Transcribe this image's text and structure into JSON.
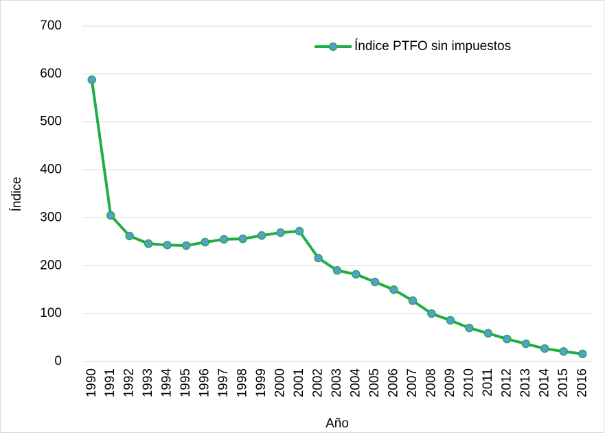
{
  "chart_data": {
    "type": "line",
    "x_label": "Año",
    "y_label": "Índice",
    "categories": [
      "1990",
      "1991",
      "1992",
      "1993",
      "1994",
      "1995",
      "1996",
      "1997",
      "1998",
      "1999",
      "2000",
      "2001",
      "2002",
      "2003",
      "2004",
      "2005",
      "2006",
      "2007",
      "2008",
      "2009",
      "2010",
      "2011",
      "2012",
      "2013",
      "2014",
      "2015",
      "2016"
    ],
    "series": [
      {
        "name": "Índice PTFO sin impuestos",
        "color": "#1fad45",
        "marker_color": "#5b9bd5",
        "values": [
          588,
          305,
          262,
          246,
          243,
          242,
          249,
          255,
          256,
          263,
          269,
          272,
          216,
          190,
          182,
          166,
          150,
          127,
          100,
          86,
          70,
          59,
          47,
          37,
          27,
          21,
          16
        ]
      }
    ],
    "ylim": [
      0,
      700
    ],
    "yticks": [
      0,
      100,
      200,
      300,
      400,
      500,
      600,
      700
    ],
    "grid": true,
    "legend": "top-right"
  }
}
